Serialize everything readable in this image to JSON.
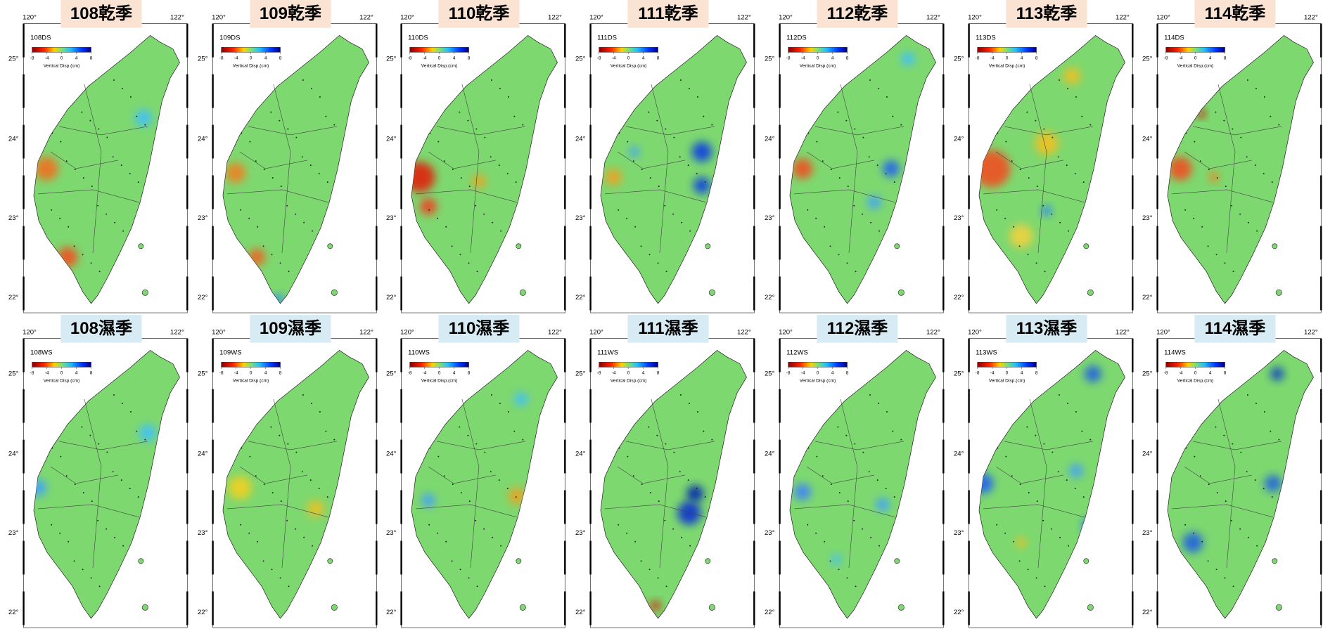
{
  "lon_labels": [
    "120°",
    "122°"
  ],
  "lat_labels": [
    "25°",
    "24°",
    "23°",
    "22°"
  ],
  "colorbar": {
    "label": "Vertical Disp.(cm)",
    "range": [
      -8,
      8
    ],
    "ticks": [
      -8,
      -4,
      0,
      4,
      8
    ]
  },
  "panels": [
    {
      "title": "108乾季",
      "label": "108DS"
    },
    {
      "title": "109乾季",
      "label": "109DS"
    },
    {
      "title": "110乾季",
      "label": "110DS"
    },
    {
      "title": "111乾季",
      "label": "111DS"
    },
    {
      "title": "112乾季",
      "label": "112DS"
    },
    {
      "title": "113乾季",
      "label": "113DS"
    },
    {
      "title": "114乾季",
      "label": "114DS"
    },
    {
      "title": "108濕季",
      "label": "108WS"
    },
    {
      "title": "109濕季",
      "label": "109WS"
    },
    {
      "title": "110濕季",
      "label": "110WS"
    },
    {
      "title": "111濕季",
      "label": "111WS"
    },
    {
      "title": "112濕季",
      "label": "112WS"
    },
    {
      "title": "113濕季",
      "label": "113WS"
    },
    {
      "title": "114濕季",
      "label": "114WS"
    }
  ]
}
